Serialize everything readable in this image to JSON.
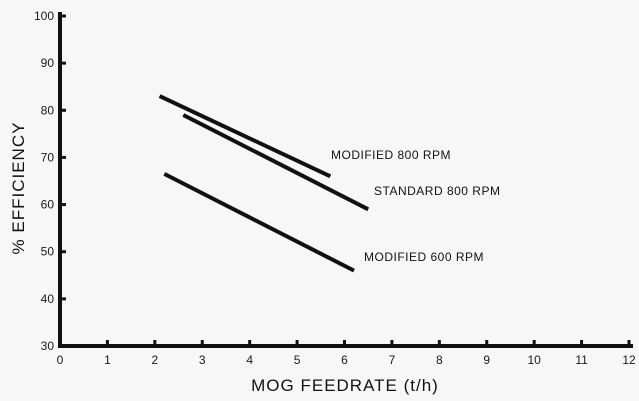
{
  "chart_data": {
    "type": "line",
    "xlabel": "MOG FEEDRATE (t/h)",
    "ylabel": "% EFFICIENCY",
    "xlim": [
      0,
      12
    ],
    "ylim": [
      30,
      100
    ],
    "x_ticks": [
      0,
      1,
      2,
      3,
      4,
      5,
      6,
      7,
      8,
      9,
      10,
      11,
      12
    ],
    "y_ticks": [
      30,
      40,
      50,
      60,
      70,
      80,
      90,
      100
    ],
    "grid": false,
    "legend": "inline labels",
    "series": [
      {
        "name": "MODIFIED 800 RPM",
        "x": [
          2.1,
          5.7
        ],
        "y": [
          83,
          66
        ],
        "color": "#111111"
      },
      {
        "name": "STANDARD 800 RPM",
        "x": [
          2.6,
          6.5
        ],
        "y": [
          79,
          59
        ],
        "color": "#111111"
      },
      {
        "name": "MODIFIED 600 RPM",
        "x": [
          2.2,
          6.2
        ],
        "y": [
          66.5,
          46
        ],
        "color": "#111111"
      }
    ]
  }
}
